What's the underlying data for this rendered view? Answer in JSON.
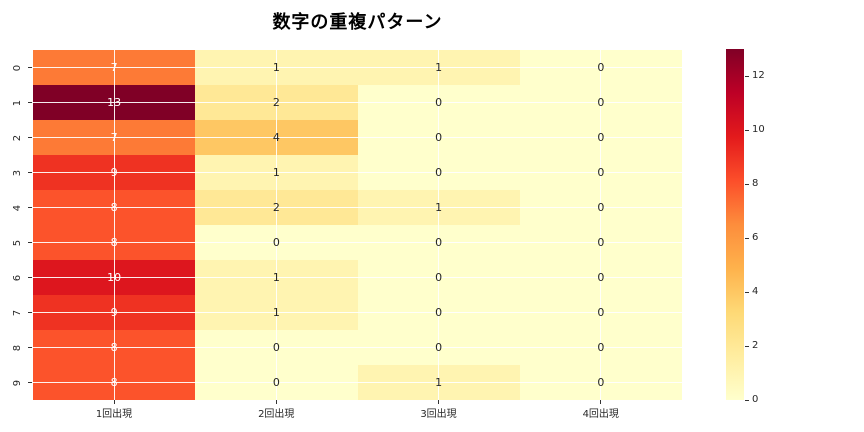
{
  "chart_data": {
    "type": "heatmap",
    "title": "数字の重複パターン",
    "x_labels": [
      "1回出現",
      "2回出現",
      "3回出現",
      "4回出現"
    ],
    "y_labels": [
      "0",
      "1",
      "2",
      "3",
      "4",
      "5",
      "6",
      "7",
      "8",
      "9"
    ],
    "matrix": [
      [
        7,
        1,
        1,
        0
      ],
      [
        13,
        2,
        0,
        0
      ],
      [
        7,
        4,
        0,
        0
      ],
      [
        9,
        1,
        0,
        0
      ],
      [
        8,
        2,
        1,
        0
      ],
      [
        8,
        0,
        0,
        0
      ],
      [
        10,
        1,
        0,
        0
      ],
      [
        9,
        1,
        0,
        0
      ],
      [
        8,
        0,
        0,
        0
      ],
      [
        8,
        0,
        1,
        0
      ]
    ],
    "vmin": 0,
    "vmax": 13,
    "colormap": "YlOrRd",
    "colormap_stops": [
      "#ffffcc",
      "#ffeda0",
      "#fed976",
      "#feb24c",
      "#fd8d3c",
      "#fc4e2a",
      "#e31a1c",
      "#bd0026",
      "#800026"
    ],
    "colorbar_ticks": [
      0,
      2,
      4,
      6,
      8,
      10,
      12
    ],
    "grid": true,
    "gridline_color": "#ffffff",
    "annotation_color_dark": "#262626",
    "annotation_color_light": "#ffffff",
    "annotation_white_threshold": 6.5,
    "background": "#ffffff",
    "colorbar_position": "right"
  }
}
